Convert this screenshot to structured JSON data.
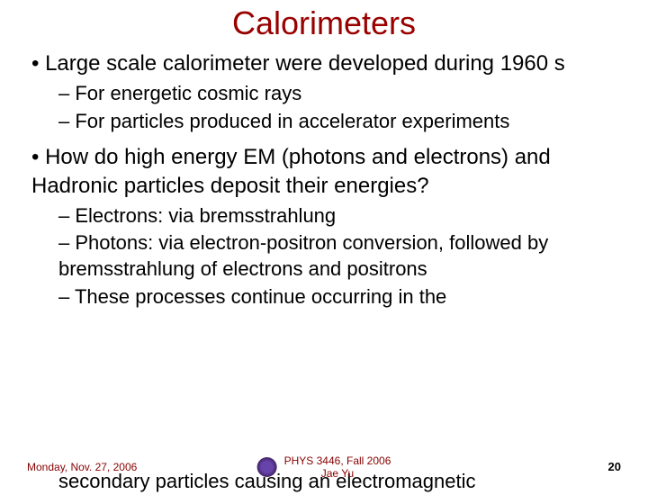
{
  "slide": {
    "title": "Calorimeters",
    "title_color": "#990000",
    "title_fontsize": 36,
    "background_color": "#ffffff",
    "bullets": [
      {
        "level": 1,
        "text": "Large scale calorimeter were developed during 1960 s"
      },
      {
        "level": 2,
        "text": "For energetic cosmic rays"
      },
      {
        "level": 2,
        "text": "For particles produced in accelerator experiments"
      },
      {
        "level": 1,
        "text": "How do high energy EM (photons and electrons) and Hadronic particles deposit their energies?",
        "gap_before": true
      },
      {
        "level": 2,
        "text": "Electrons: via bremsstrahlung"
      },
      {
        "level": 2,
        "text": "Photons: via electron-positron conversion, followed by bremsstrahlung of electrons and positrons"
      },
      {
        "level": 2,
        "text": "These processes continue occurring in the"
      }
    ],
    "cutoff_text": "secondary particles causing an electromagnetic",
    "level1_fontsize": 24,
    "level2_fontsize": 22,
    "text_color": "#000000"
  },
  "footer": {
    "left_text": "Monday, Nov. 27, 2006",
    "center_line1": "PHYS 3446, Fall 2006",
    "center_line2": "Jae Yu",
    "page_number": "20",
    "footer_color": "#880000",
    "footer_fontsize": 12
  }
}
